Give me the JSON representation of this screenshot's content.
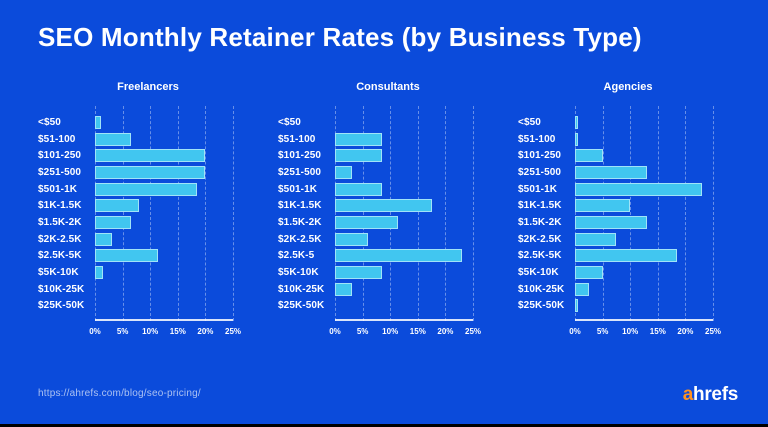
{
  "title": "SEO Monthly Retainer Rates (by Business Type)",
  "footer": {
    "source_url": "https://ahrefs.com/blog/seo-pricing/",
    "logo": {
      "prefix": "a",
      "rest": "hrefs"
    }
  },
  "colors": {
    "background": "#0B4BDB",
    "bar": "#41C6F0",
    "bar_border": "rgba(255,255,255,0.5)",
    "text": "#FFFFFF",
    "gridline": "rgba(255,255,255,0.38)",
    "axis_line": "rgba(255,255,255,0.85)",
    "muted_text": "rgba(255,255,255,0.65)",
    "logo_orange": "#FF9221"
  },
  "chart_data": [
    {
      "type": "bar",
      "orientation": "horizontal",
      "title": "Freelancers",
      "categories": [
        "<$50",
        "$51-100",
        "$101-250",
        "$251-500",
        "$501-1K",
        "$1K-1.5K",
        "$1.5K-2K",
        "$2K-2.5K",
        "$2.5K-5K",
        "$5K-10K",
        "$10K-25K",
        "$25K-50K"
      ],
      "values": [
        1,
        6.5,
        20,
        20,
        18.5,
        8,
        6.5,
        3,
        11.5,
        1.5,
        0,
        0
      ],
      "xlabel": "",
      "ylabel": "",
      "xlim": [
        0,
        25
      ],
      "xticks": [
        "0%",
        "5%",
        "10%",
        "15%",
        "20%",
        "25%"
      ],
      "grid": "dashed-vertical",
      "legend": "none"
    },
    {
      "type": "bar",
      "orientation": "horizontal",
      "title": "Consultants",
      "categories": [
        "<$50",
        "$51-100",
        "$101-250",
        "$251-500",
        "$501-1K",
        "$1K-1.5K",
        "$1.5K-2K",
        "$2K-2.5K",
        "$2.5K-5",
        "$5K-10K",
        "$10K-25K",
        "$25K-50K"
      ],
      "values": [
        0,
        8.5,
        8.5,
        3,
        8.5,
        17.5,
        11.5,
        6,
        23,
        8.5,
        3,
        0
      ],
      "xlabel": "",
      "ylabel": "",
      "xlim": [
        0,
        25
      ],
      "xticks": [
        "0%",
        "5%",
        "10%",
        "15%",
        "20%",
        "25%"
      ],
      "grid": "dashed-vertical",
      "legend": "none"
    },
    {
      "type": "bar",
      "orientation": "horizontal",
      "title": "Agencies",
      "categories": [
        "<$50",
        "$51-100",
        "$101-250",
        "$251-500",
        "$501-1K",
        "$1K-1.5K",
        "$1.5K-2K",
        "$2K-2.5K",
        "$2.5K-5K",
        "$5K-10K",
        "$10K-25K",
        "$25K-50K"
      ],
      "values": [
        0.5,
        0.5,
        5,
        13,
        23,
        10,
        13,
        7.5,
        18.5,
        5,
        2.5,
        0.5
      ],
      "xlabel": "",
      "ylabel": "",
      "xlim": [
        0,
        25
      ],
      "xticks": [
        "0%",
        "5%",
        "10%",
        "15%",
        "20%",
        "25%"
      ],
      "grid": "dashed-vertical",
      "legend": "none"
    }
  ]
}
